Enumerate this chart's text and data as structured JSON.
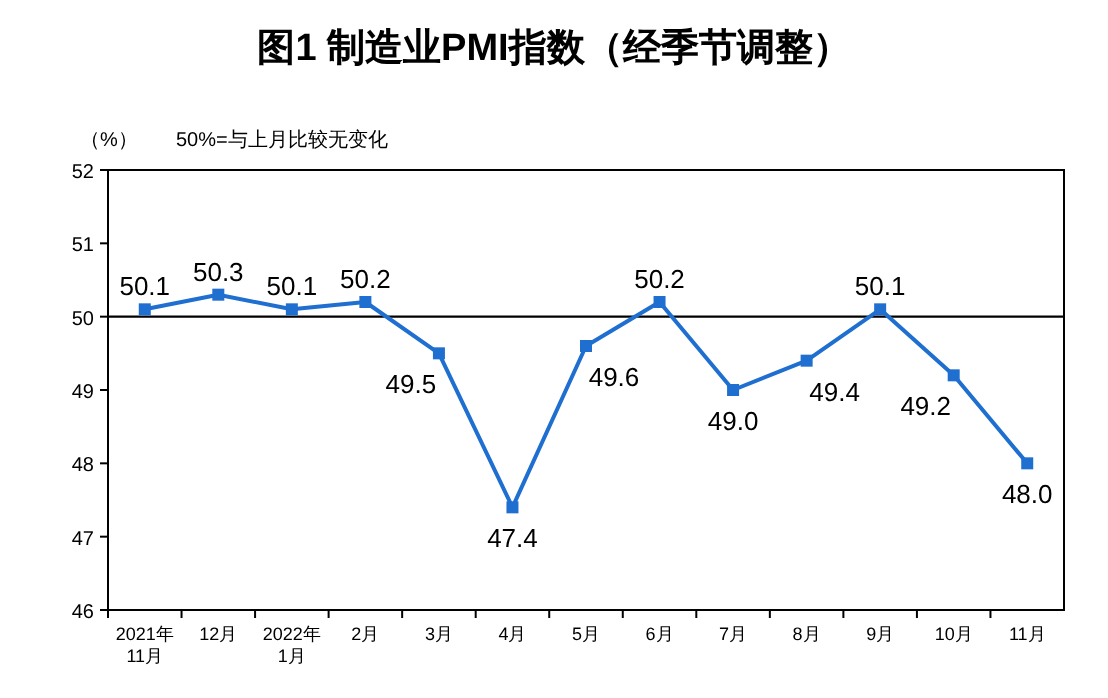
{
  "chart_data": {
    "type": "line",
    "title": "图1 制造业PMI指数（经季节调整）",
    "ylabel": "（%）",
    "annotations": [
      "50%=与上月比较无变化"
    ],
    "categories": [
      "2021年\n11月",
      "12月",
      "2022年\n1月",
      "2月",
      "3月",
      "4月",
      "5月",
      "6月",
      "7月",
      "8月",
      "9月",
      "10月",
      "11月"
    ],
    "series": [
      {
        "color": "#1f6fd0",
        "values": [
          50.1,
          50.3,
          50.1,
          50.2,
          49.5,
          47.4,
          49.6,
          50.2,
          49.0,
          49.4,
          50.1,
          49.2,
          48.0
        ],
        "value_labels": [
          "50.1",
          "50.3",
          "50.1",
          "50.2",
          "49.5",
          "47.4",
          "49.6",
          "50.2",
          "49.0",
          "49.4",
          "50.1",
          "49.2",
          "48.0"
        ]
      }
    ],
    "ylim": [
      46,
      52
    ],
    "yticks": [
      46,
      47,
      48,
      49,
      50,
      51,
      52
    ],
    "ref_lines": [
      {
        "axis": "y",
        "value": 50,
        "color": "#000000"
      }
    ],
    "marker": "square",
    "line_style": "solid",
    "grid": false
  }
}
